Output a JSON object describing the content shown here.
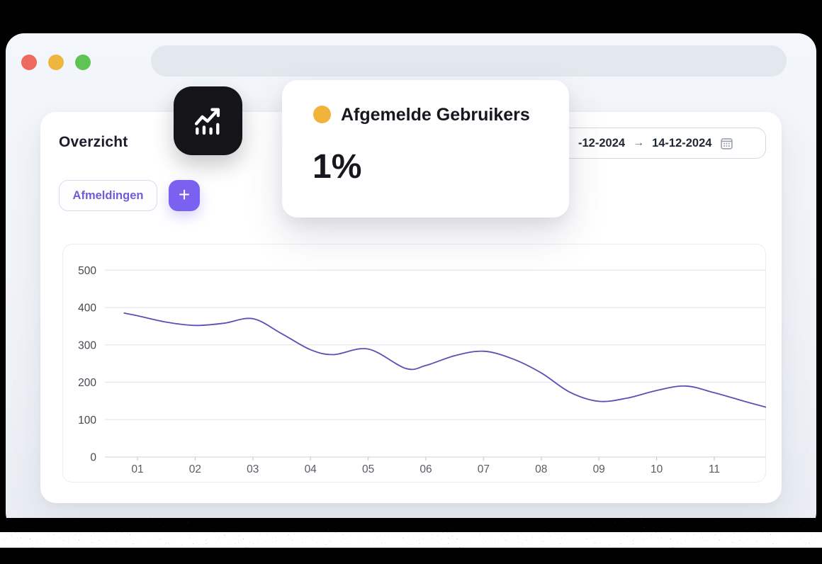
{
  "window": {
    "controls": [
      {
        "name": "close",
        "color": "#ED6A5E"
      },
      {
        "name": "minimize",
        "color": "#EEB63E"
      },
      {
        "name": "zoom",
        "color": "#5FC454"
      }
    ],
    "address_bar_value": ""
  },
  "overview": {
    "title": "Overzicht",
    "chip_label": "Afmeldingen",
    "add_label": "+"
  },
  "tooltip": {
    "label": "Afgemelde Gebruikers",
    "value": "1%",
    "dot_color": "#F2B33D"
  },
  "date_range": {
    "start_visible": "-12-2024",
    "arrow": "→",
    "end": "14-12-2024"
  },
  "chart_data": {
    "type": "line",
    "title": "Afgemelde Gebruikers",
    "x_tick_labels": [
      "01",
      "02",
      "03",
      "04",
      "05",
      "06",
      "07",
      "08",
      "09",
      "10",
      "11"
    ],
    "y_tick_values": [
      0,
      100,
      200,
      300,
      400,
      500
    ],
    "ylim": [
      0,
      500
    ],
    "xlim": [
      0.7,
      11.95
    ],
    "grid": true,
    "legend": "none",
    "line_color": "#5D4FB5",
    "points": [
      [
        0.77,
        385
      ],
      [
        1,
        378
      ],
      [
        1.5,
        361
      ],
      [
        2,
        352
      ],
      [
        2.5,
        358
      ],
      [
        3,
        370
      ],
      [
        3.5,
        330
      ],
      [
        4,
        287
      ],
      [
        4.4,
        274
      ],
      [
        5,
        289
      ],
      [
        5.65,
        237
      ],
      [
        6,
        245
      ],
      [
        6.5,
        271
      ],
      [
        7,
        283
      ],
      [
        7.5,
        263
      ],
      [
        8,
        225
      ],
      [
        8.5,
        173
      ],
      [
        9,
        149
      ],
      [
        9.5,
        158
      ],
      [
        10,
        178
      ],
      [
        10.5,
        190
      ],
      [
        11,
        172
      ],
      [
        11.5,
        150
      ],
      [
        11.9,
        133
      ]
    ]
  },
  "colors": {
    "accent_purple": "#7B61F0",
    "chip_text": "#6F5DD3",
    "line": "#5D4FB5",
    "tooltip_dot": "#F2B33D",
    "screen_bg": "#F1F4F8",
    "address_bar_bg": "#E3E8EF"
  }
}
